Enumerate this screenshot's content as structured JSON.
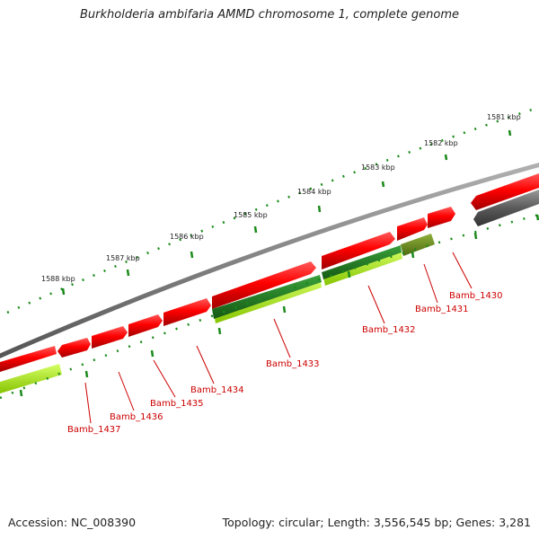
{
  "title": "Burkholderia ambifaria AMMD chromosome 1, complete genome",
  "footer": {
    "accession": "Accession: NC_008390",
    "topology": "Topology: circular; Length: 3,556,545 bp; Genes: 3,281"
  },
  "colors": {
    "backbone": "#7a7a7a",
    "cds_forward": "#ff0000",
    "cds_reverse_dark": "#555555",
    "blast_dark_green": "#1f7a1f",
    "blast_light_green": "#a6f000",
    "blast_olive": "#6b8e23",
    "tick_green": "#1a8a1a",
    "label_red": "#cc0000"
  },
  "kbp_labels": [
    "1581 kbp",
    "1582 kbp",
    "1583 kbp",
    "1584 kbp",
    "1585 kbp",
    "1586 kbp",
    "1587 kbp",
    "1588 kbp"
  ],
  "gene_labels": [
    "Bamb_1430",
    "Bamb_1431",
    "Bamb_1432",
    "Bamb_1433",
    "Bamb_1434",
    "Bamb_1435",
    "Bamb_1436",
    "Bamb_1437"
  ]
}
